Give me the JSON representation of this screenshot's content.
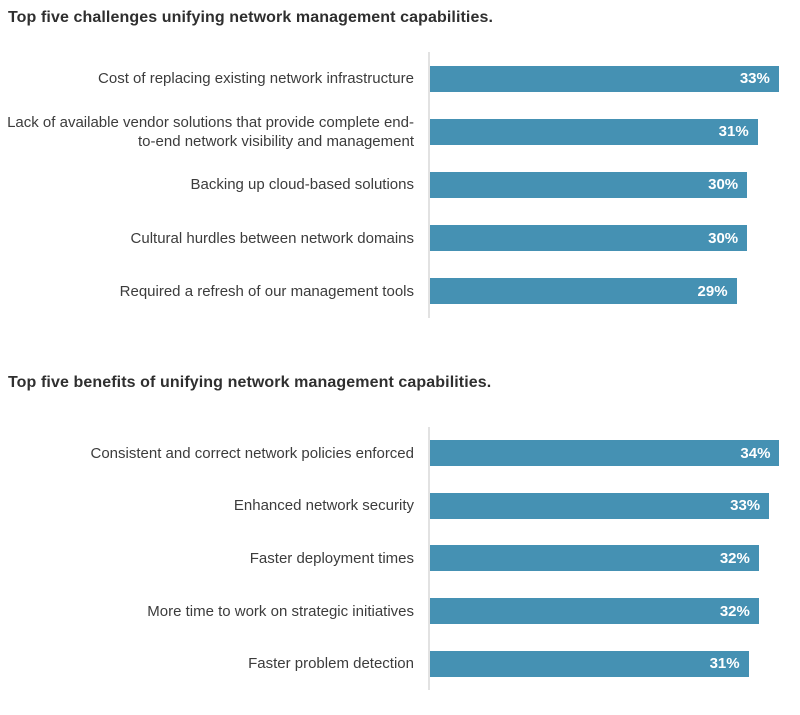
{
  "page": {
    "background": "#ffffff"
  },
  "colors": {
    "bar_fill": "#4591b3",
    "axis_line": "#e2e2e2",
    "title_text": "#2f2f2f",
    "category_text": "#3c3c3c",
    "value_text": "#ffffff"
  },
  "chart_data": [
    {
      "type": "bar",
      "orientation": "horizontal",
      "title": "Top five challenges unifying network management capabilities.",
      "categories": [
        "Cost of replacing existing network infrastructure",
        "Lack of available vendor solutions that provide complete end-to-end network visibility and management",
        "Backing up cloud-based solutions",
        "Cultural hurdles between network domains",
        "Required a refresh of our management tools"
      ],
      "values": [
        33,
        31,
        30,
        30,
        29
      ],
      "value_suffix": "%",
      "value_labels": "inside-end",
      "xlim": [
        0,
        35
      ],
      "xlabel": "",
      "ylabel": "",
      "grid": false,
      "legend": false
    },
    {
      "type": "bar",
      "orientation": "horizontal",
      "title": "Top five benefits of unifying network management capabilities.",
      "categories": [
        "Consistent and correct network policies enforced",
        "Enhanced network security",
        "Faster deployment times",
        "More time to work on strategic initiatives",
        "Faster problem detection"
      ],
      "values": [
        34,
        33,
        32,
        32,
        31
      ],
      "value_suffix": "%",
      "value_labels": "inside-end",
      "xlim": [
        0,
        36
      ],
      "xlabel": "",
      "ylabel": "",
      "grid": false,
      "legend": false
    }
  ]
}
